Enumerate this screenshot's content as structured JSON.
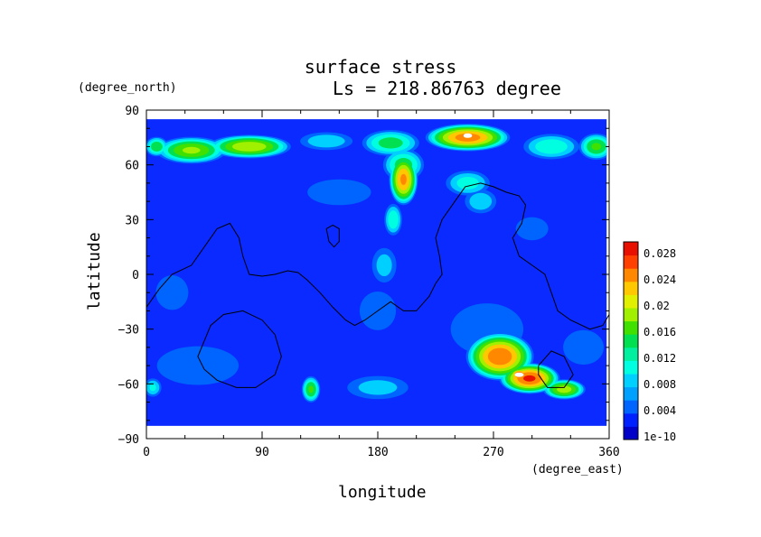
{
  "chart_data": {
    "type": "heatmap",
    "title": "surface stress",
    "subtitle": "Ls = 218.86763 degree",
    "xlabel": "longitude",
    "ylabel": "latitude",
    "x_unit": "(degree_east)",
    "y_unit": "(degree_north)",
    "xlim": [
      0,
      360
    ],
    "ylim": [
      -90,
      90
    ],
    "x_ticks": [
      0,
      90,
      180,
      270,
      360
    ],
    "y_ticks": [
      90,
      60,
      30,
      0,
      -30,
      -60,
      -90
    ],
    "x_tick_labels": [
      "0",
      "90",
      "180",
      "270",
      "360"
    ],
    "y_tick_labels": [
      "90",
      "60",
      "30",
      "0",
      "−30",
      "−60",
      "−90"
    ],
    "colorbar": {
      "range": [
        0,
        0.03
      ],
      "tick_labels": [
        "0.028",
        "0.024",
        "0.02",
        "0.016",
        "0.012",
        "0.008",
        "0.004",
        "1e-10"
      ],
      "colors": [
        "#0000c8",
        "#0020ff",
        "#0064ff",
        "#00a0ff",
        "#00d0ff",
        "#00ffe0",
        "#00f0a0",
        "#00e050",
        "#40e000",
        "#a0f000",
        "#e0f000",
        "#ffc800",
        "#ff8800",
        "#ff4000",
        "#e81000"
      ]
    },
    "background_color": "#0a2aff",
    "note_colors": {
      "saturated": "#ffffff",
      "contour": "#000000"
    },
    "blobs": [
      {
        "lon": 35,
        "lat": 68,
        "rx": 30,
        "ry": 8,
        "v": 0.019
      },
      {
        "lon": 80,
        "lat": 70,
        "rx": 35,
        "ry": 7,
        "v": 0.021
      },
      {
        "lon": 8,
        "lat": 70,
        "rx": 10,
        "ry": 6,
        "v": 0.015
      },
      {
        "lon": 140,
        "lat": 73,
        "rx": 25,
        "ry": 6,
        "v": 0.009
      },
      {
        "lon": 190,
        "lat": 72,
        "rx": 25,
        "ry": 8,
        "v": 0.014
      },
      {
        "lon": 250,
        "lat": 75,
        "rx": 35,
        "ry": 8,
        "v": 0.026
      },
      {
        "lon": 250,
        "lat": 76,
        "rx": 12,
        "ry": 3,
        "v": 0.03
      },
      {
        "lon": 315,
        "lat": 70,
        "rx": 25,
        "ry": 8,
        "v": 0.012
      },
      {
        "lon": 350,
        "lat": 70,
        "rx": 15,
        "ry": 8,
        "v": 0.016
      },
      {
        "lon": 200,
        "lat": 52,
        "rx": 12,
        "ry": 15,
        "v": 0.025
      },
      {
        "lon": 200,
        "lat": 60,
        "rx": 18,
        "ry": 10,
        "v": 0.014
      },
      {
        "lon": 192,
        "lat": 30,
        "rx": 8,
        "ry": 10,
        "v": 0.012
      },
      {
        "lon": 185,
        "lat": 5,
        "rx": 12,
        "ry": 12,
        "v": 0.008
      },
      {
        "lon": 180,
        "lat": -20,
        "rx": 20,
        "ry": 15,
        "v": 0.006
      },
      {
        "lon": 250,
        "lat": 50,
        "rx": 20,
        "ry": 8,
        "v": 0.011
      },
      {
        "lon": 260,
        "lat": 40,
        "rx": 15,
        "ry": 8,
        "v": 0.009
      },
      {
        "lon": 150,
        "lat": 45,
        "rx": 35,
        "ry": 10,
        "v": 0.006
      },
      {
        "lon": 300,
        "lat": 25,
        "rx": 20,
        "ry": 10,
        "v": 0.005
      },
      {
        "lon": 20,
        "lat": -10,
        "rx": 20,
        "ry": 15,
        "v": 0.005
      },
      {
        "lon": 40,
        "lat": -50,
        "rx": 45,
        "ry": 15,
        "v": 0.006
      },
      {
        "lon": 128,
        "lat": -63,
        "rx": 8,
        "ry": 8,
        "v": 0.016
      },
      {
        "lon": 5,
        "lat": -62,
        "rx": 8,
        "ry": 6,
        "v": 0.01
      },
      {
        "lon": 180,
        "lat": -62,
        "rx": 30,
        "ry": 8,
        "v": 0.008
      },
      {
        "lon": 275,
        "lat": -45,
        "rx": 28,
        "ry": 14,
        "v": 0.027
      },
      {
        "lon": 298,
        "lat": -57,
        "rx": 25,
        "ry": 9,
        "v": 0.028
      },
      {
        "lon": 325,
        "lat": -63,
        "rx": 18,
        "ry": 6,
        "v": 0.02
      },
      {
        "lon": 290,
        "lat": -55,
        "rx": 8,
        "ry": 4,
        "v": 0.03
      },
      {
        "lon": 265,
        "lat": -30,
        "rx": 40,
        "ry": 20,
        "v": 0.006
      },
      {
        "lon": 340,
        "lat": -40,
        "rx": 25,
        "ry": 15,
        "v": 0.005
      }
    ],
    "topography_contours": [
      [
        [
          0,
          -18
        ],
        [
          10,
          -8
        ],
        [
          20,
          0
        ],
        [
          35,
          5
        ],
        [
          45,
          15
        ],
        [
          55,
          25
        ],
        [
          65,
          28
        ],
        [
          72,
          20
        ],
        [
          75,
          10
        ],
        [
          80,
          0
        ],
        [
          90,
          -1
        ],
        [
          100,
          0
        ],
        [
          110,
          2
        ],
        [
          118,
          1
        ],
        [
          125,
          -3
        ],
        [
          135,
          -10
        ],
        [
          145,
          -18
        ],
        [
          155,
          -25
        ],
        [
          162,
          -28
        ],
        [
          170,
          -25
        ],
        [
          180,
          -20
        ],
        [
          190,
          -15
        ],
        [
          200,
          -20
        ],
        [
          210,
          -20
        ],
        [
          220,
          -12
        ],
        [
          225,
          -5
        ],
        [
          230,
          0
        ],
        [
          228,
          10
        ],
        [
          225,
          20
        ],
        [
          230,
          30
        ],
        [
          240,
          40
        ],
        [
          248,
          48
        ],
        [
          260,
          50
        ],
        [
          270,
          48
        ],
        [
          280,
          45
        ],
        [
          290,
          43
        ],
        [
          295,
          38
        ],
        [
          292,
          28
        ],
        [
          285,
          20
        ],
        [
          290,
          10
        ],
        [
          300,
          5
        ],
        [
          310,
          0
        ],
        [
          315,
          -10
        ],
        [
          320,
          -20
        ],
        [
          330,
          -25
        ],
        [
          345,
          -30
        ],
        [
          355,
          -28
        ],
        [
          360,
          -22
        ]
      ],
      [
        [
          140,
          25
        ],
        [
          145,
          27
        ],
        [
          150,
          25
        ],
        [
          150,
          18
        ],
        [
          146,
          15
        ],
        [
          142,
          18
        ],
        [
          140,
          25
        ]
      ],
      [
        [
          40,
          -45
        ],
        [
          50,
          -28
        ],
        [
          60,
          -22
        ],
        [
          75,
          -20
        ],
        [
          90,
          -25
        ],
        [
          100,
          -33
        ],
        [
          105,
          -45
        ],
        [
          100,
          -55
        ],
        [
          85,
          -62
        ],
        [
          70,
          -62
        ],
        [
          55,
          -58
        ],
        [
          45,
          -52
        ],
        [
          40,
          -45
        ]
      ],
      [
        [
          305,
          -50
        ],
        [
          315,
          -42
        ],
        [
          325,
          -45
        ],
        [
          332,
          -55
        ],
        [
          325,
          -62
        ],
        [
          312,
          -62
        ],
        [
          305,
          -55
        ],
        [
          305,
          -50
        ]
      ]
    ]
  }
}
